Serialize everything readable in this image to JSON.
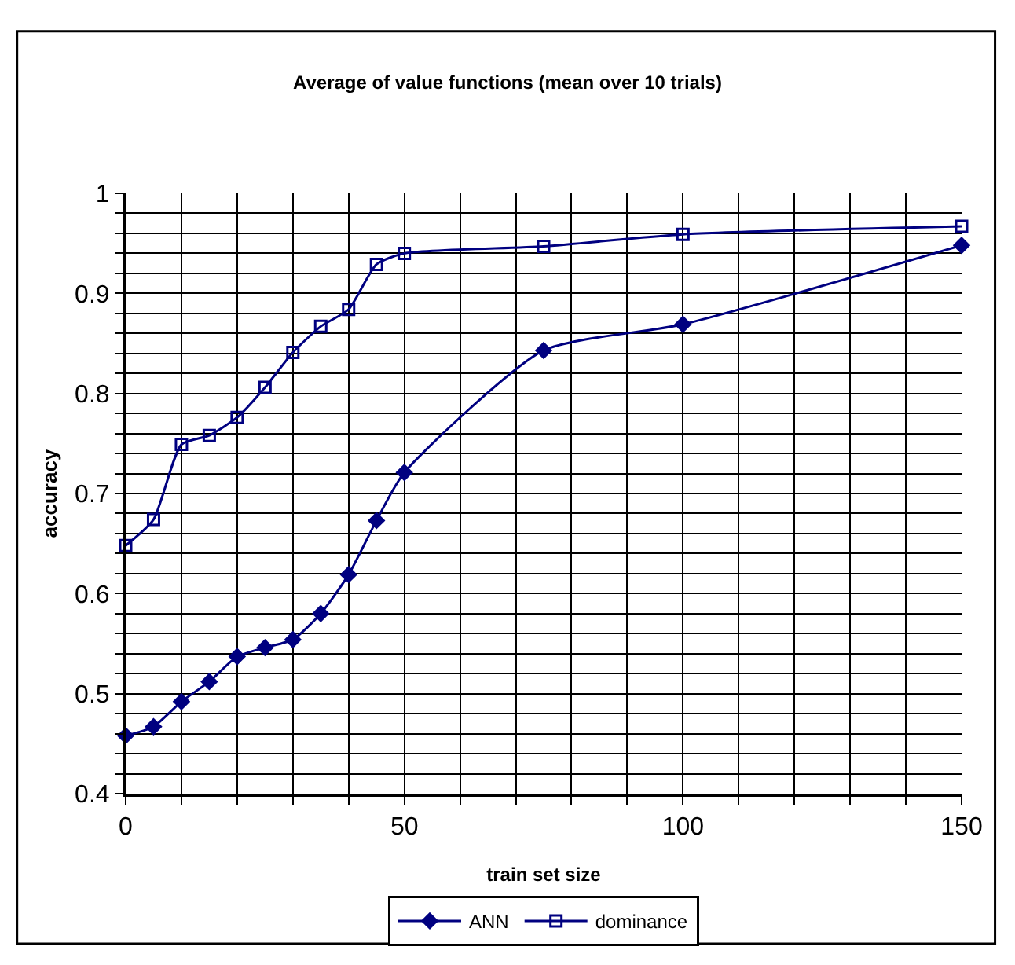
{
  "chart_data": {
    "type": "line",
    "title": "Average of value functions (mean over 10 trials)",
    "xlabel": "train set size",
    "ylabel": "accuracy",
    "x": [
      0,
      5,
      10,
      15,
      20,
      25,
      30,
      35,
      40,
      45,
      50,
      75,
      100,
      150
    ],
    "series": [
      {
        "name": "ANN",
        "color": "#000080",
        "marker": "diamond",
        "values": [
          0.458,
          0.467,
          0.492,
          0.512,
          0.537,
          0.546,
          0.554,
          0.58,
          0.619,
          0.673,
          0.721,
          0.843,
          0.869,
          0.948
        ]
      },
      {
        "name": "dominance",
        "color": "#000080",
        "marker": "square",
        "values": [
          0.648,
          0.674,
          0.749,
          0.758,
          0.776,
          0.806,
          0.841,
          0.867,
          0.884,
          0.929,
          0.94,
          0.947,
          0.959,
          0.967
        ]
      }
    ],
    "xlim": [
      0,
      150
    ],
    "xticks": [
      0,
      {
        "value": 10,
        "label": null
      },
      {
        "value": 20,
        "label": null
      },
      {
        "value": 30,
        "label": null
      },
      {
        "value": 40,
        "label": null
      },
      50,
      {
        "value": 60,
        "label": null
      },
      {
        "value": 70,
        "label": null
      },
      {
        "value": 80,
        "label": null
      },
      {
        "value": 90,
        "label": null
      },
      100,
      {
        "value": 110,
        "label": null
      },
      {
        "value": 120,
        "label": null
      },
      {
        "value": 130,
        "label": null
      },
      {
        "value": 140,
        "label": null
      },
      150
    ],
    "ylim": [
      0.4,
      1
    ],
    "yticks": [
      0.4,
      {
        "value": 0.42,
        "label": null
      },
      {
        "value": 0.44,
        "label": null
      },
      {
        "value": 0.46,
        "label": null
      },
      {
        "value": 0.48,
        "label": null
      },
      0.5,
      {
        "value": 0.52,
        "label": null
      },
      {
        "value": 0.54,
        "label": null
      },
      {
        "value": 0.56,
        "label": null
      },
      {
        "value": 0.58,
        "label": null
      },
      0.6,
      {
        "value": 0.62,
        "label": null
      },
      {
        "value": 0.64,
        "label": null
      },
      {
        "value": 0.66,
        "label": null
      },
      {
        "value": 0.68,
        "label": null
      },
      0.7,
      {
        "value": 0.72,
        "label": null
      },
      {
        "value": 0.74,
        "label": null
      },
      {
        "value": 0.76,
        "label": null
      },
      {
        "value": 0.78,
        "label": null
      },
      0.8,
      {
        "value": 0.82,
        "label": null
      },
      {
        "value": 0.84,
        "label": null
      },
      {
        "value": 0.86,
        "label": null
      },
      {
        "value": 0.88,
        "label": null
      },
      0.9,
      {
        "value": 0.92,
        "label": null
      },
      {
        "value": 0.94,
        "label": null
      },
      {
        "value": 0.96,
        "label": null
      },
      {
        "value": 0.98,
        "label": null
      },
      1
    ],
    "grid": true,
    "legend": "bottom",
    "line_style": "solid"
  }
}
